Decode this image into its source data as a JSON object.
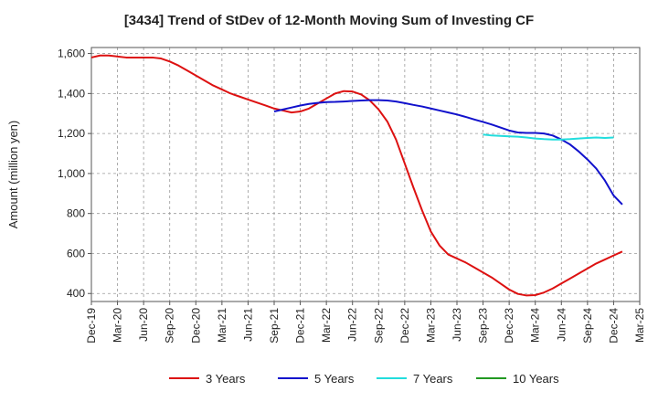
{
  "chart_data": {
    "type": "line",
    "title": "[3434]  Trend of StDev of 12-Month Moving Sum of Investing CF",
    "xlabel": "",
    "ylabel": "Amount (million yen)",
    "ylim": [
      360,
      1630
    ],
    "yticks": [
      400,
      600,
      800,
      1000,
      1200,
      1400,
      1600
    ],
    "ytick_labels": [
      "400",
      "600",
      "800",
      "1,000",
      "1,200",
      "1,400",
      "1,600"
    ],
    "x_start": "Dec-19",
    "x_end": "Mar-25",
    "x_tick_labels": [
      "Dec-19",
      "Mar-20",
      "Jun-20",
      "Sep-20",
      "Dec-20",
      "Mar-21",
      "Jun-21",
      "Sep-21",
      "Dec-21",
      "Mar-22",
      "Jun-22",
      "Sep-22",
      "Dec-22",
      "Mar-23",
      "Jun-23",
      "Sep-23",
      "Dec-23",
      "Mar-24",
      "Jun-24",
      "Sep-24",
      "Dec-24",
      "Mar-25"
    ],
    "grid": true,
    "legend_position": "bottom",
    "series": [
      {
        "name": "3 Years",
        "color": "#dd1111",
        "start_index": 0,
        "values": [
          1580,
          1590,
          1590,
          1585,
          1580,
          1580,
          1580,
          1580,
          1575,
          1560,
          1540,
          1515,
          1490,
          1465,
          1440,
          1420,
          1400,
          1385,
          1370,
          1355,
          1340,
          1325,
          1315,
          1305,
          1310,
          1325,
          1350,
          1375,
          1400,
          1412,
          1410,
          1395,
          1365,
          1320,
          1260,
          1170,
          1050,
          930,
          815,
          710,
          640,
          595,
          575,
          555,
          530,
          505,
          480,
          450,
          420,
          398,
          390,
          392,
          405,
          425,
          450,
          475,
          500,
          525,
          550,
          570,
          590,
          610
        ]
      },
      {
        "name": "5 Years",
        "color": "#1111cc",
        "start_index": 21,
        "values": [
          1310,
          1320,
          1330,
          1340,
          1348,
          1353,
          1357,
          1358,
          1360,
          1363,
          1365,
          1367,
          1367,
          1365,
          1360,
          1352,
          1343,
          1335,
          1325,
          1315,
          1305,
          1295,
          1283,
          1270,
          1258,
          1245,
          1230,
          1215,
          1205,
          1203,
          1203,
          1200,
          1190,
          1170,
          1145,
          1110,
          1070,
          1025,
          965,
          890,
          845
        ]
      },
      {
        "name": "7 Years",
        "color": "#22dddd",
        "start_index": 45,
        "values": [
          1195,
          1190,
          1188,
          1186,
          1184,
          1180,
          1175,
          1172,
          1170,
          1170,
          1172,
          1175,
          1178,
          1180,
          1178,
          1180
        ]
      },
      {
        "name": "10 Years",
        "color": "#229922",
        "start_index": 0,
        "values": []
      }
    ]
  }
}
